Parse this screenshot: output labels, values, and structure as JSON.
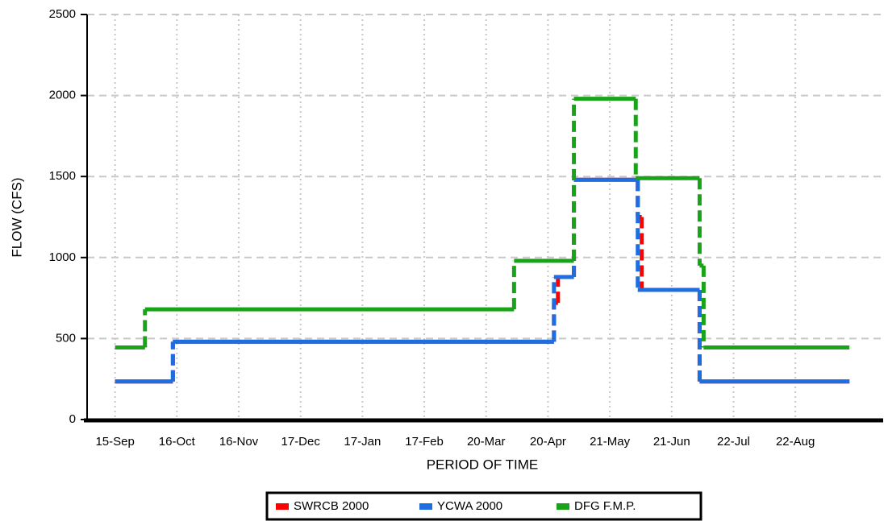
{
  "chart_data": {
    "type": "step",
    "xlabel": "PERIOD OF TIME",
    "ylabel": "FLOW (CFS)",
    "xlim": [
      -14,
      385
    ],
    "xticks": [
      {
        "value": 0,
        "label": "15-Sep"
      },
      {
        "value": 31,
        "label": "16-Oct"
      },
      {
        "value": 62,
        "label": "16-Nov"
      },
      {
        "value": 93,
        "label": "17-Dec"
      },
      {
        "value": 124,
        "label": "17-Jan"
      },
      {
        "value": 155,
        "label": "17-Feb"
      },
      {
        "value": 186,
        "label": "20-Mar"
      },
      {
        "value": 217,
        "label": "20-Apr"
      },
      {
        "value": 248,
        "label": "21-May"
      },
      {
        "value": 279,
        "label": "21-Jun"
      },
      {
        "value": 310,
        "label": "22-Jul"
      },
      {
        "value": 341,
        "label": "22-Aug"
      }
    ],
    "ylim": [
      0,
      2500
    ],
    "yticks": [
      0,
      500,
      1000,
      1500,
      2000,
      2500
    ],
    "grid": true,
    "legend": "bottom",
    "series": [
      {
        "name": "SWRCB 2000",
        "color": "#ff0000",
        "x": [
          0,
          29,
          220,
          222,
          230,
          262,
          264,
          293,
          368
        ],
        "values": [
          235,
          480,
          720,
          880,
          1480,
          1250,
          800,
          235,
          235
        ]
      },
      {
        "name": "YCWA 2000",
        "color": "#1f6ee0",
        "x": [
          0,
          29,
          220,
          230,
          262,
          293,
          368
        ],
        "values": [
          235,
          480,
          880,
          1480,
          800,
          235,
          235
        ]
      },
      {
        "name": "DFG F.M.P.",
        "color": "#19a319",
        "x": [
          0,
          15,
          200,
          230,
          261,
          293,
          295,
          368
        ],
        "values": [
          445,
          680,
          980,
          1980,
          1490,
          950,
          445,
          445
        ]
      }
    ]
  }
}
